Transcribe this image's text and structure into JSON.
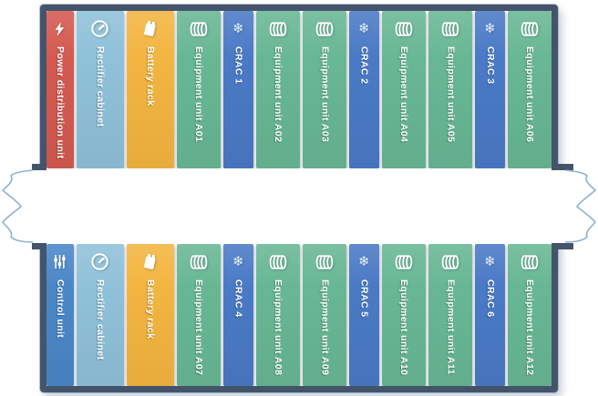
{
  "palette": {
    "power": "#d45a50",
    "control": "#4a87c8",
    "rectifier": "#8fc1d9",
    "battery": "#f3b540",
    "equipment": "#68b794",
    "crac": "#4a7ac6",
    "wall": "#44546a",
    "tear_outline": "#8cb2d4",
    "label_text": "#ffffff"
  },
  "rows": {
    "top": [
      {
        "label": "Power distribution unit",
        "type": "power",
        "icon": "lightning-icon"
      },
      {
        "label": "Rectifier cabinet",
        "type": "rectifier",
        "icon": "gauge-icon"
      },
      {
        "label": "Battery rack",
        "type": "battery",
        "icon": "battery-icon"
      },
      {
        "label": "Equipment unit A01",
        "type": "equipment",
        "icon": "server-stack-icon"
      },
      {
        "label": "CRAC 1",
        "type": "crac",
        "icon": "snowflake-icon"
      },
      {
        "label": "Equipment unit A02",
        "type": "equipment",
        "icon": "server-stack-icon"
      },
      {
        "label": "Equipment unit A03",
        "type": "equipment",
        "icon": "server-stack-icon"
      },
      {
        "label": "CRAC 2",
        "type": "crac",
        "icon": "snowflake-icon"
      },
      {
        "label": "Equipment unit A04",
        "type": "equipment",
        "icon": "server-stack-icon"
      },
      {
        "label": "Equipment unit A05",
        "type": "equipment",
        "icon": "server-stack-icon"
      },
      {
        "label": "CRAC 3",
        "type": "crac",
        "icon": "snowflake-icon"
      },
      {
        "label": "Equipment unit A06",
        "type": "equipment",
        "icon": "server-stack-icon"
      }
    ],
    "bottom": [
      {
        "label": "Control unit",
        "type": "control",
        "icon": "sliders-icon"
      },
      {
        "label": "Rectifier cabinet",
        "type": "rectifier",
        "icon": "gauge-icon"
      },
      {
        "label": "Battery rack",
        "type": "battery",
        "icon": "battery-icon"
      },
      {
        "label": "Equipment unit A07",
        "type": "equipment",
        "icon": "server-stack-icon"
      },
      {
        "label": "CRAC 4",
        "type": "crac",
        "icon": "snowflake-icon"
      },
      {
        "label": "Equipment unit A08",
        "type": "equipment",
        "icon": "server-stack-icon"
      },
      {
        "label": "Equipment unit A09",
        "type": "equipment",
        "icon": "server-stack-icon"
      },
      {
        "label": "CRAC 5",
        "type": "crac",
        "icon": "snowflake-icon"
      },
      {
        "label": "Equipment unit A10",
        "type": "equipment",
        "icon": "server-stack-icon"
      },
      {
        "label": "Equipment unit A11",
        "type": "equipment",
        "icon": "server-stack-icon"
      },
      {
        "label": "CRAC 6",
        "type": "crac",
        "icon": "snowflake-icon"
      },
      {
        "label": "Equipment unit A12",
        "type": "equipment",
        "icon": "server-stack-icon"
      }
    ]
  }
}
